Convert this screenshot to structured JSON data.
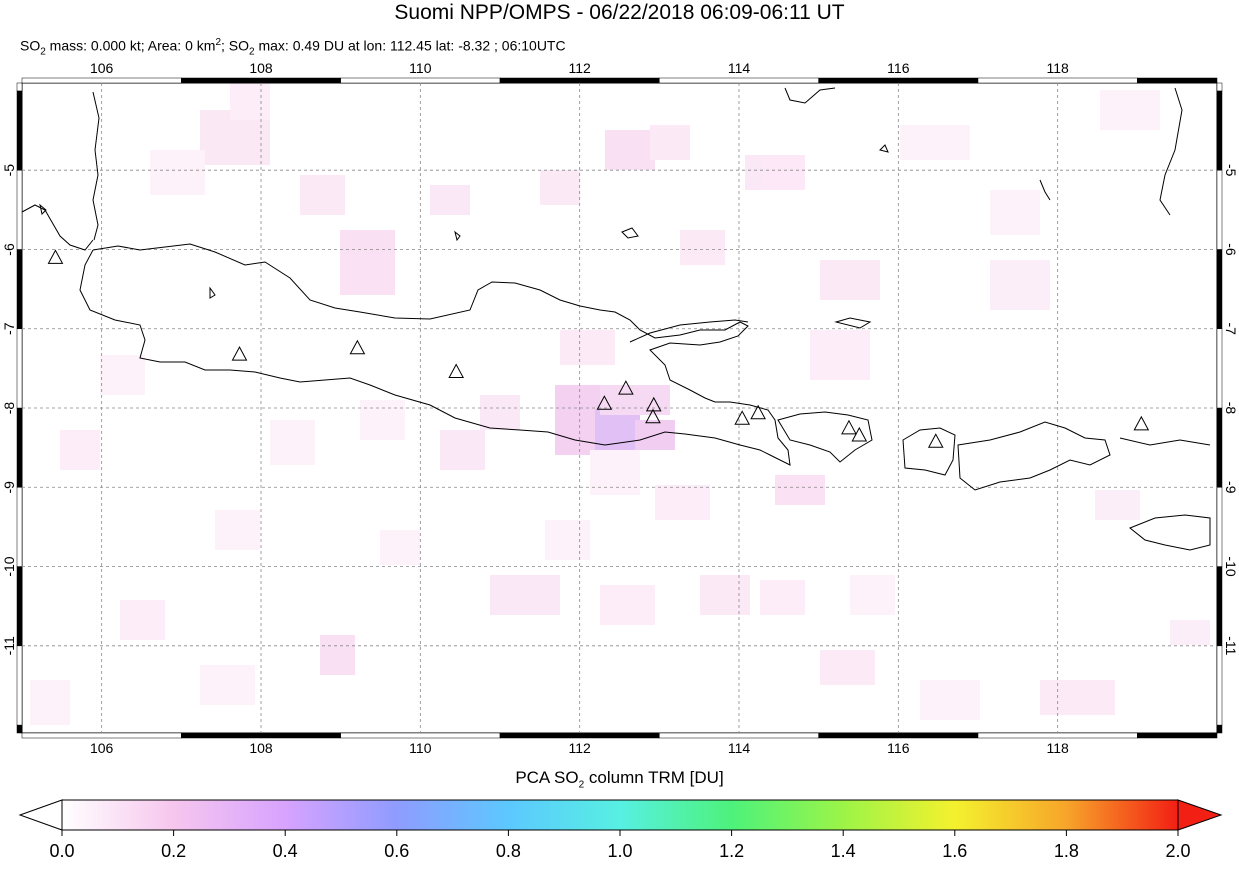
{
  "title": "Suomi NPP/OMPS - 06/22/2018 06:09-06:11 UT",
  "subtitle": {
    "so2": "SO",
    "so2_sub": "2",
    "mass_text": " mass: 0.000 kt; Area: 0 km",
    "area_sup": "2",
    "sep": "; SO",
    "max_text": " max: 0.49 DU at lon: 112.45 lat: -8.32 ; 06:10UTC"
  },
  "map": {
    "lon_range": [
      105,
      120
    ],
    "lat_range": [
      -12.1,
      -3.9
    ],
    "lon_ticks": [
      "106",
      "108",
      "110",
      "112",
      "114",
      "116",
      "118"
    ],
    "lat_ticks": [
      "-5",
      "-6",
      "-7",
      "-8",
      "-9",
      "-10",
      "-11"
    ],
    "volcanoes": [
      {
        "lon": 105.42,
        "lat": -6.1
      },
      {
        "lon": 107.73,
        "lat": -7.32
      },
      {
        "lon": 109.21,
        "lat": -7.24
      },
      {
        "lon": 110.45,
        "lat": -7.54
      },
      {
        "lon": 112.31,
        "lat": -7.94
      },
      {
        "lon": 112.58,
        "lat": -7.75
      },
      {
        "lon": 112.93,
        "lat": -7.96
      },
      {
        "lon": 112.92,
        "lat": -8.11
      },
      {
        "lon": 114.04,
        "lat": -8.13
      },
      {
        "lon": 114.24,
        "lat": -8.06
      },
      {
        "lon": 115.38,
        "lat": -8.25
      },
      {
        "lon": 115.51,
        "lat": -8.34
      },
      {
        "lon": 116.47,
        "lat": -8.42
      },
      {
        "lon": 119.05,
        "lat": -8.2
      }
    ]
  },
  "colorbar": {
    "label": "PCA SO",
    "label_sub": "2",
    "label_rest": " column TRM [DU]",
    "ticks": [
      "0.0",
      "0.2",
      "0.4",
      "0.6",
      "0.8",
      "1.0",
      "1.2",
      "1.4",
      "1.6",
      "1.8",
      "2.0"
    ],
    "colors": [
      "#ffffff",
      "#f6c6ee",
      "#d7a3ff",
      "#8f9cff",
      "#5cc8ff",
      "#57f0e2",
      "#4df27b",
      "#9cf447",
      "#f4f12e",
      "#f7a52a",
      "#f21f14"
    ]
  }
}
